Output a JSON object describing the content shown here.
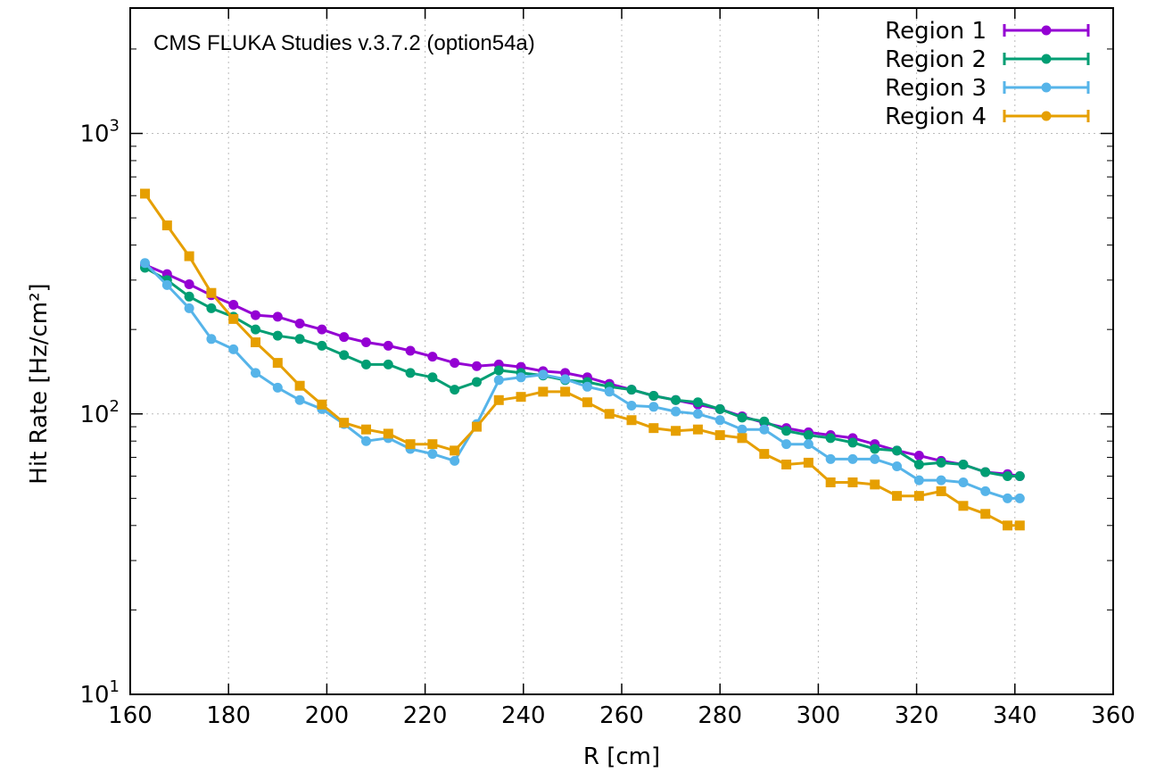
{
  "chart_data": {
    "type": "line",
    "title": "",
    "annotation": "CMS FLUKA Studies v.3.7.2 (option54a)",
    "xlabel": "R [cm]",
    "ylabel": "Hit Rate [Hz/cm²]",
    "xlim": [
      160,
      360
    ],
    "ylim": [
      10,
      2800
    ],
    "yscale": "log",
    "grid": true,
    "legend_position": "top-right",
    "x_ticks": [
      "160",
      "180",
      "200",
      "220",
      "240",
      "260",
      "280",
      "300",
      "320",
      "340",
      "360"
    ],
    "y_ticks": [
      {
        "base": "10",
        "exp": "1",
        "value": 10
      },
      {
        "base": "10",
        "exp": "2",
        "value": 100
      },
      {
        "base": "10",
        "exp": "3",
        "value": 1000
      }
    ],
    "x": [
      163,
      167.5,
      172,
      176.5,
      181,
      185.5,
      190,
      194.5,
      199,
      203.5,
      208,
      212.5,
      217,
      221.5,
      226,
      230.5,
      235,
      239.5,
      244,
      248.5,
      253,
      257.5,
      262,
      266.5,
      271,
      275.5,
      280,
      284.5,
      289,
      293.5,
      298,
      302.5,
      307,
      311.5,
      316,
      320.5,
      325,
      329.5,
      334,
      338.5,
      341
    ],
    "series": [
      {
        "name": "Region 1",
        "color": "#9400d3",
        "marker": "circle",
        "values": [
          340,
          315,
          290,
          265,
          245,
          225,
          222,
          210,
          200,
          188,
          180,
          175,
          168,
          160,
          152,
          148,
          150,
          147,
          142,
          140,
          135,
          128,
          122,
          116,
          112,
          108,
          104,
          98,
          93,
          89,
          86,
          84,
          82,
          78,
          74,
          71,
          68,
          66,
          62,
          61,
          60
        ]
      },
      {
        "name": "Region 2",
        "color": "#009e73",
        "marker": "circle",
        "values": [
          332,
          300,
          262,
          238,
          222,
          200,
          190,
          185,
          175,
          162,
          150,
          150,
          140,
          135,
          122,
          130,
          143,
          140,
          137,
          132,
          130,
          125,
          122,
          116,
          112,
          110,
          104,
          97,
          94,
          87,
          84,
          82,
          79,
          75,
          74,
          66,
          67,
          66,
          62,
          60,
          60
        ]
      },
      {
        "name": "Region 3",
        "color": "#56b4e9",
        "marker": "circle",
        "values": [
          345,
          288,
          238,
          185,
          170,
          140,
          124,
          112,
          104,
          92,
          80,
          82,
          75,
          72,
          68,
          92,
          132,
          135,
          138,
          133,
          125,
          120,
          107,
          106,
          102,
          100,
          95,
          88,
          88,
          78,
          78,
          69,
          69,
          69,
          65,
          58,
          58,
          57,
          53,
          50,
          50
        ]
      },
      {
        "name": "Region 4",
        "color": "#e69f00",
        "marker": "square",
        "values": [
          610,
          470,
          365,
          270,
          218,
          180,
          152,
          126,
          108,
          93,
          88,
          85,
          78,
          78,
          74,
          90,
          112,
          115,
          120,
          120,
          110,
          100,
          95,
          89,
          87,
          88,
          84,
          82,
          72,
          66,
          67,
          57,
          57,
          56,
          51,
          51,
          53,
          47,
          44,
          40,
          40
        ]
      }
    ]
  }
}
